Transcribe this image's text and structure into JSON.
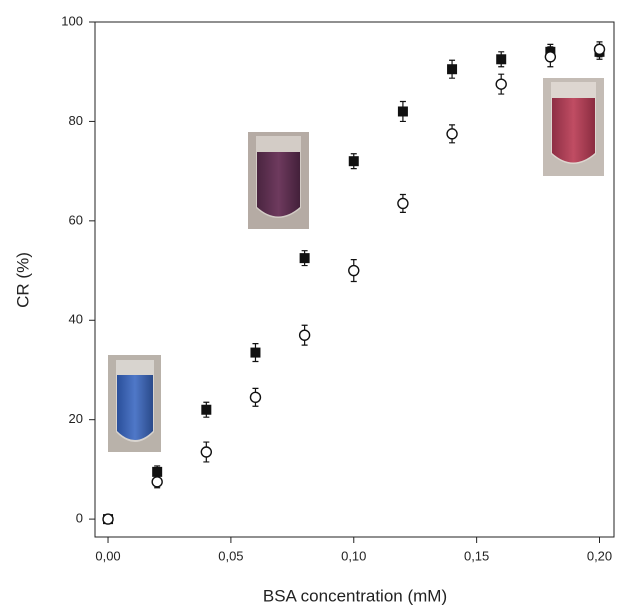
{
  "chart_data": {
    "type": "scatter",
    "x_label": "BSA concentration (mM)",
    "y_label": "CR (%)",
    "x": [
      0,
      0.02,
      0.04,
      0.06,
      0.08,
      0.1,
      0.12,
      0.14,
      0.16,
      0.18,
      0.2
    ],
    "series": [
      {
        "marker": "square",
        "color": "#111111",
        "values": [
          0,
          9.5,
          22,
          33.5,
          52.5,
          72,
          82,
          90.5,
          92.5,
          94,
          94
        ],
        "errors": [
          0.8,
          1.2,
          1.5,
          1.8,
          1.5,
          1.5,
          2,
          1.8,
          1.5,
          1.5,
          1.5
        ]
      },
      {
        "marker": "circle",
        "color": "#111111",
        "values": [
          0,
          7.5,
          13.5,
          24.5,
          37,
          50,
          63.5,
          77.5,
          87.5,
          93,
          94.5
        ],
        "errors": [
          0.8,
          1.2,
          2,
          1.8,
          2,
          2.2,
          1.8,
          1.8,
          2,
          2,
          1.5
        ]
      }
    ],
    "xlim": [
      -0.0053,
      0.2059
    ],
    "xticks": [
      {
        "value": 0,
        "label": "0,00"
      },
      {
        "value": 0.05,
        "label": "0,05"
      },
      {
        "value": 0.1,
        "label": "0,10"
      },
      {
        "value": 0.15,
        "label": "0,15"
      },
      {
        "value": 0.2,
        "label": "0,20"
      }
    ],
    "ylim": [
      -3.6,
      100
    ],
    "yticks": [
      0,
      20,
      40,
      60,
      80,
      100
    ]
  }
}
